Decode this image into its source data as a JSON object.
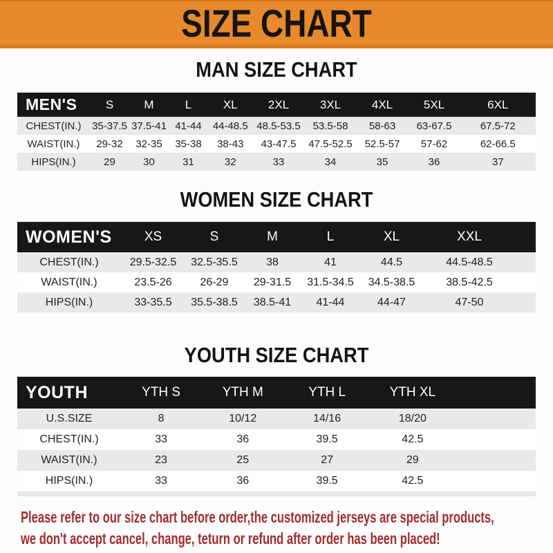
{
  "banner": {
    "title": "SIZE CHART"
  },
  "colors": {
    "banner_orange": "#E8892B",
    "banner_edge": "#D87D1C",
    "header_bar_black": "#171717",
    "row_gray": "#E9E9E7",
    "row_white": "#FFFFFF",
    "footer_red": "#A12D2D",
    "title_black": "#121212"
  },
  "sections": [
    {
      "title": "MAN SIZE CHART",
      "table": {
        "corner_label": "MEN'S",
        "size_columns": [
          "S",
          "M",
          "L",
          "XL",
          "2XL",
          "3XL",
          "4XL",
          "5XL",
          "6XL"
        ],
        "rows": [
          {
            "label": "CHEST(IN.)",
            "values": [
              "35-37.5",
              "37.5-41",
              "41-44",
              "44-48.5",
              "48.5-53.5",
              "53.5-58",
              "58-63",
              "63-67.5",
              "67.5-72"
            ]
          },
          {
            "label": "WAIST(IN.)",
            "values": [
              "29-32",
              "32-35",
              "35-38",
              "38-43",
              "43-47.5",
              "47.5-52.5",
              "52.5-57",
              "57-62",
              "62-66.5"
            ]
          },
          {
            "label": "HIPS(IN.)",
            "values": [
              "29",
              "30",
              "31",
              "32",
              "33",
              "34",
              "35",
              "36",
              "37"
            ]
          }
        ]
      }
    },
    {
      "title": "WOMEN SIZE CHART",
      "table": {
        "corner_label": "WOMEN'S",
        "size_columns": [
          "XS",
          "S",
          "M",
          "L",
          "XL",
          "XXL"
        ],
        "rows": [
          {
            "label": "CHEST(IN.)",
            "values": [
              "29.5-32.5",
              "32.5-35.5",
              "38",
              "41",
              "44.5",
              "44.5-48.5"
            ]
          },
          {
            "label": "WAIST(IN.)",
            "values": [
              "23.5-26",
              "26-29",
              "29-31.5",
              "31.5-34.5",
              "34.5-38.5",
              "38.5-42.5"
            ]
          },
          {
            "label": "HIPS(IN.)",
            "values": [
              "33-35.5",
              "35.5-38.5",
              "38.5-41",
              "41-44",
              "44-47",
              "47-50"
            ]
          }
        ]
      }
    },
    {
      "title": "YOUTH SIZE CHART",
      "table": {
        "corner_label": "YOUTH",
        "size_columns": [
          "YTH S",
          "YTH M",
          "YTH L",
          "YTH XL"
        ],
        "rows": [
          {
            "label": "U.S.SIZE",
            "values": [
              "8",
              "10/12",
              "14/16",
              "18/20"
            ]
          },
          {
            "label": "CHEST(IN.)",
            "values": [
              "33",
              "36",
              "39.5",
              "42.5"
            ]
          },
          {
            "label": "WAIST(IN.)",
            "values": [
              "23",
              "25",
              "27",
              "29"
            ]
          },
          {
            "label": "HIPS(IN.)",
            "values": [
              "33",
              "36",
              "39.5",
              "42.5"
            ]
          }
        ]
      }
    }
  ],
  "footer": {
    "line1": "Please refer to our size chart before order,the customized jerseys are special products,",
    "line2": "we don't accept cancel, change, teturn or refund after order has been placed!"
  }
}
